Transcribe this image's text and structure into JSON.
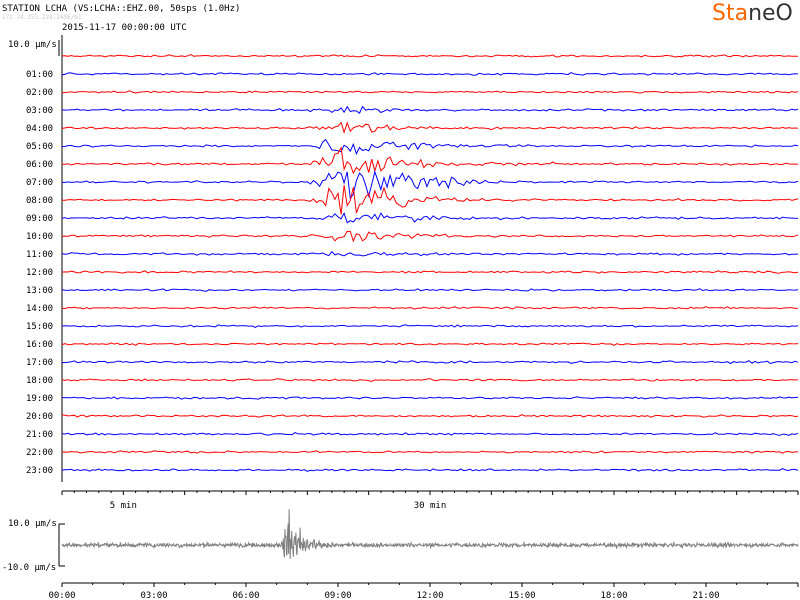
{
  "header": {
    "station_line": "STATION LCHA (VS:LCHA::EHZ.00, 50sps (1.0Hz)",
    "sub_line": "172.24.255.229:2456/m1",
    "date_line": "2015-11-17 00:00:00 UTC"
  },
  "logo": {
    "part1": "Sta",
    "part2": "neO",
    "color1": "#ff6600",
    "color2": "#333333"
  },
  "chart_data": [
    {
      "type": "line",
      "title": "",
      "scale_label": "10.0 µm/s",
      "row_labels": [
        "",
        "01:00",
        "02:00",
        "03:00",
        "04:00",
        "05:00",
        "06:00",
        "07:00",
        "08:00",
        "09:00",
        "10:00",
        "11:00",
        "12:00",
        "13:00",
        "14:00",
        "15:00",
        "16:00",
        "17:00",
        "18:00",
        "19:00",
        "20:00",
        "21:00",
        "22:00",
        "23:00"
      ],
      "row_colors": [
        "#ff0000",
        "#0000ff"
      ],
      "x_tick_labels": [
        {
          "minute": 5,
          "label": "5 min"
        },
        {
          "minute": 30,
          "label": "30 min"
        }
      ],
      "xlim_minutes": [
        0,
        60
      ],
      "event": {
        "row": "07:00",
        "start_minute": 20,
        "peak_minute": 23,
        "end_minute": 40
      }
    },
    {
      "type": "line",
      "title": "",
      "y_labels": {
        "top": "10.0 µm/s",
        "bottom": "-10.0 µm/s"
      },
      "ylim": [
        -10,
        10
      ],
      "series_color": "#808080",
      "x_tick_labels": [
        "00:00",
        "03:00",
        "06:00",
        "09:00",
        "12:00",
        "15:00",
        "18:00",
        "21:00"
      ],
      "xlim_hours": [
        0,
        24
      ],
      "event_hour": 7.4
    }
  ]
}
